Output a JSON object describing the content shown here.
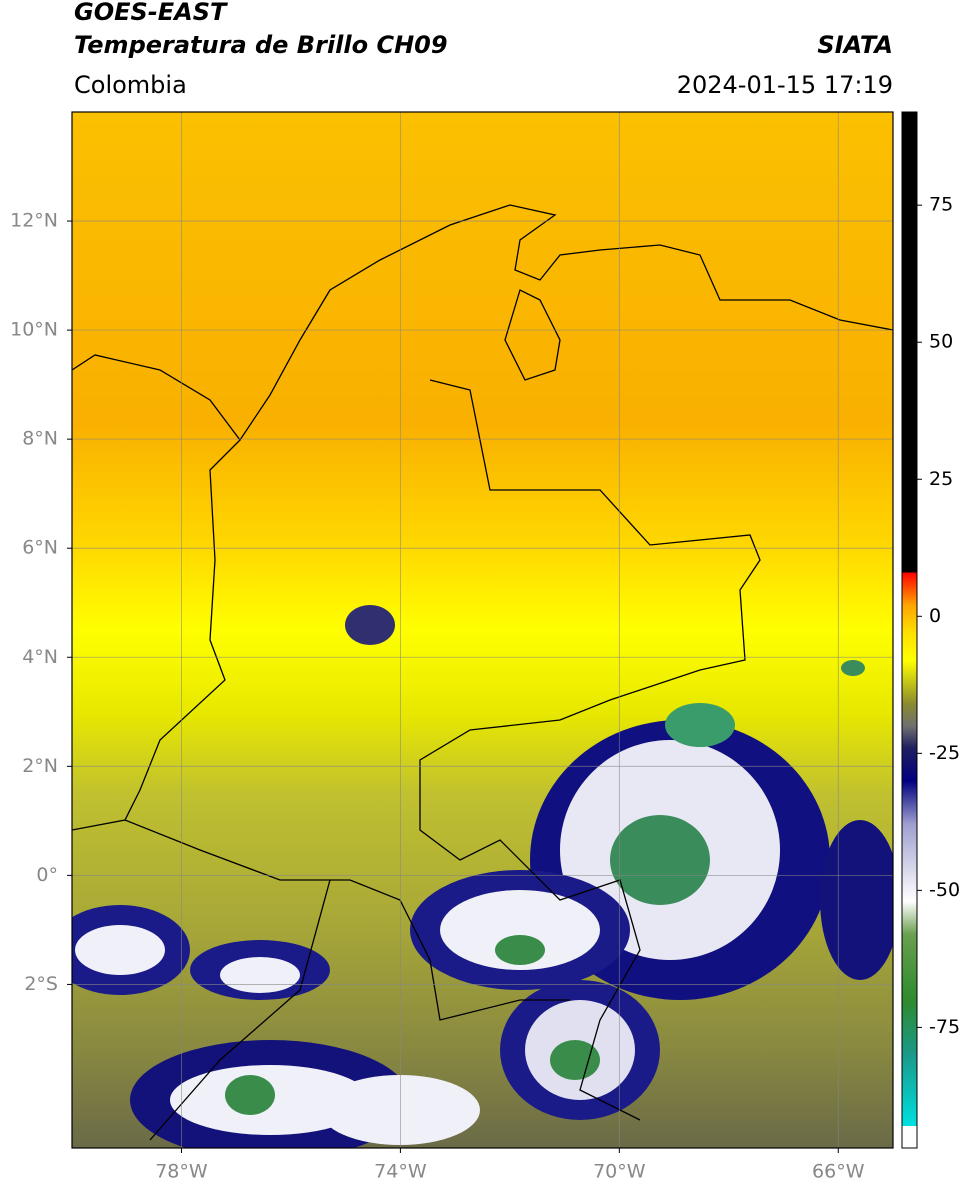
{
  "header": {
    "satellite": "GOES-EAST",
    "product": "Temperatura de Brillo CH09",
    "region": "Colombia",
    "source": "SIATA",
    "timestamp": "2024-01-15 17:19"
  },
  "chart_data": {
    "type": "map",
    "xlim": [
      -80,
      -65
    ],
    "ylim": [
      -5,
      14
    ],
    "xticks": [
      {
        "value": -78,
        "label": "78°W"
      },
      {
        "value": -74,
        "label": "74°W"
      },
      {
        "value": -70,
        "label": "70°W"
      },
      {
        "value": -66,
        "label": "66°W"
      }
    ],
    "yticks": [
      {
        "value": -2,
        "label": "2°S"
      },
      {
        "value": 0,
        "label": "0°"
      },
      {
        "value": 2,
        "label": "2°N"
      },
      {
        "value": 4,
        "label": "4°N"
      },
      {
        "value": 6,
        "label": "6°N"
      },
      {
        "value": 8,
        "label": "8°N"
      },
      {
        "value": 10,
        "label": "10°N"
      },
      {
        "value": 12,
        "label": "12°N"
      }
    ],
    "grid": true,
    "colorbar": {
      "lim": [
        -97,
        92
      ],
      "ticks": [
        75,
        50,
        25,
        0,
        -25,
        -50,
        -75
      ],
      "colormap": [
        {
          "value": -97,
          "color": "#ffffff"
        },
        {
          "value": -93,
          "color": "#ffffff"
        },
        {
          "value": -93,
          "color": "#00e0e0"
        },
        {
          "value": -80,
          "color": "#1a9a8a"
        },
        {
          "value": -70,
          "color": "#2e8b2e"
        },
        {
          "value": -58,
          "color": "#6aa050"
        },
        {
          "value": -52,
          "color": "#ffffff"
        },
        {
          "value": -38,
          "color": "#a0a0d0"
        },
        {
          "value": -30,
          "color": "#000080"
        },
        {
          "value": -24,
          "color": "#202060"
        },
        {
          "value": -20,
          "color": "#707070"
        },
        {
          "value": -16,
          "color": "#8a8a30"
        },
        {
          "value": -8,
          "color": "#ffff00"
        },
        {
          "value": -3,
          "color": "#ffe000"
        },
        {
          "value": 2,
          "color": "#ffa500"
        },
        {
          "value": 8,
          "color": "#ff0000"
        },
        {
          "value": 8,
          "color": "#000000"
        },
        {
          "value": 92,
          "color": "#000000"
        }
      ]
    }
  }
}
